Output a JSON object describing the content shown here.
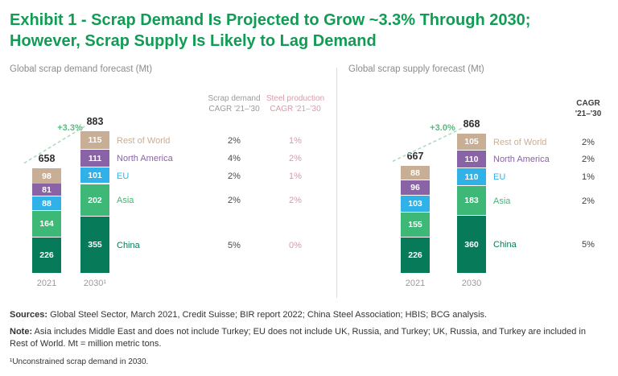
{
  "title": "Exhibit 1 - Scrap Demand Is Projected to Grow ~3.3% Through 2030; However, Scrap Supply Is Likely to Lag Demand",
  "colors": {
    "title": "#119c55",
    "growth": "#57ba7f",
    "dashed_line": "#a8dabb",
    "china": "#077a59",
    "asia": "#3eb876",
    "eu": "#30b2e8",
    "north_america": "#8a63a6",
    "rest_of_world": "#c8ae95",
    "pink": "#d79ca8",
    "gray_header": "#9b9b9b",
    "dark_value": "#4a4a4a"
  },
  "chart_data": [
    {
      "type": "bar",
      "title": "Global scrap demand forecast (Mt)",
      "categories": [
        "2021",
        "2030¹"
      ],
      "totals": [
        658,
        883
      ],
      "ylim": [
        0,
        900
      ],
      "growth_label": "+3.3%",
      "series": [
        {
          "name": "China",
          "values": [
            226,
            355
          ],
          "color": "#077a59"
        },
        {
          "name": "Asia",
          "values": [
            164,
            202
          ],
          "color": "#3eb876"
        },
        {
          "name": "EU",
          "values": [
            88,
            101
          ],
          "color": "#30b2e8"
        },
        {
          "name": "North America",
          "values": [
            81,
            111
          ],
          "color": "#8a63a6"
        },
        {
          "name": "Rest of World",
          "values": [
            98,
            115
          ],
          "color": "#c8ae95"
        }
      ],
      "cagr_columns": [
        {
          "header": "Scrap demand CAGR '21–'30",
          "header_color": "#9b9b9b",
          "value_color": "#4a4a4a",
          "header_bold": false,
          "values": [
            "2%",
            "4%",
            "2%",
            "2%",
            "5%"
          ]
        },
        {
          "header": "Steel production CAGR '21–'30",
          "header_color": "#d79ca8",
          "value_color": "#d79ca8",
          "header_bold": false,
          "values": [
            "1%",
            "2%",
            "1%",
            "2%",
            "0%"
          ]
        }
      ]
    },
    {
      "type": "bar",
      "title": "Global scrap supply forecast (Mt)",
      "categories": [
        "2021",
        "2030"
      ],
      "totals": [
        667,
        868
      ],
      "ylim": [
        0,
        900
      ],
      "growth_label": "+3.0%",
      "series": [
        {
          "name": "China",
          "values": [
            226,
            360
          ],
          "color": "#077a59"
        },
        {
          "name": "Asia",
          "values": [
            155,
            183
          ],
          "color": "#3eb876"
        },
        {
          "name": "EU",
          "values": [
            103,
            110
          ],
          "color": "#30b2e8"
        },
        {
          "name": "North America",
          "values": [
            96,
            110
          ],
          "color": "#8a63a6"
        },
        {
          "name": "Rest of World",
          "values": [
            88,
            105
          ],
          "color": "#c8ae95"
        }
      ],
      "cagr_columns": [
        {
          "header": "CAGR '21–'30",
          "header_color": "#3e3e3e",
          "value_color": "#3e3e3e",
          "header_bold": true,
          "values": [
            "2%",
            "2%",
            "1%",
            "2%",
            "5%"
          ]
        }
      ]
    }
  ],
  "footer": {
    "sources_label": "Sources:",
    "sources_text": " Global Steel Sector, March 2021, Credit Suisse; BIR report 2022; China Steel Association; HBIS; BCG analysis.",
    "note_label": "Note:",
    "note_text": " Asia includes Middle East and does not include Turkey; EU does not include UK, Russia, and Turkey; UK, Russia, and Turkey are included in Rest of World. Mt = million metric tons.",
    "footnote1": "¹Unconstrained scrap demand in 2030."
  }
}
